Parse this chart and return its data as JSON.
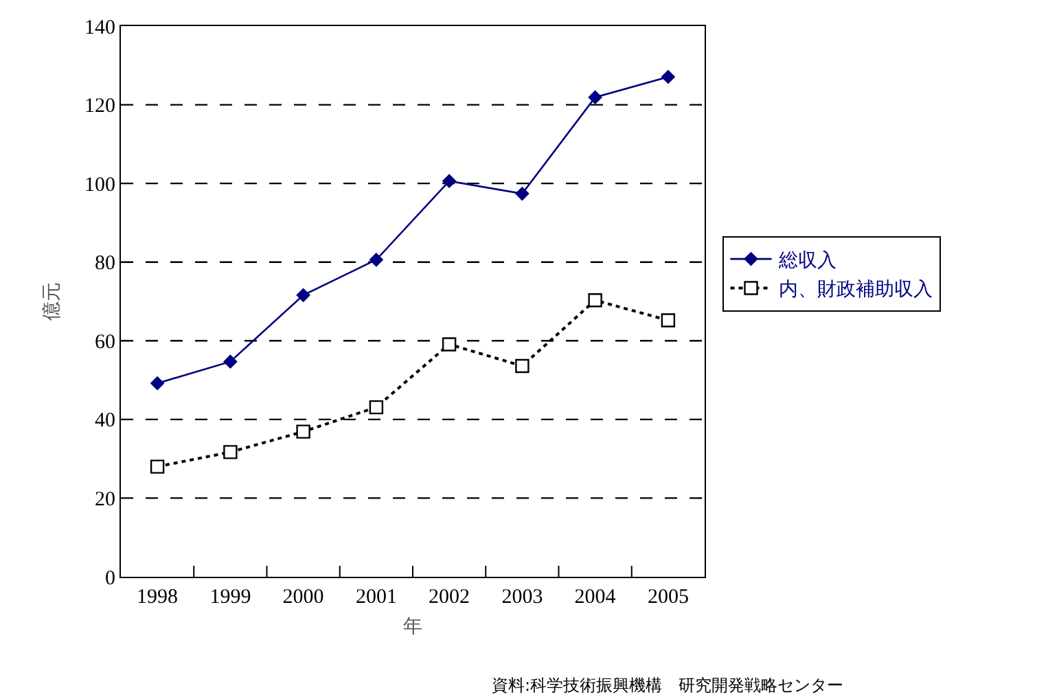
{
  "chart_data": {
    "type": "line",
    "xlabel": "年",
    "ylabel": "億元",
    "categories": [
      "1998",
      "1999",
      "2000",
      "2001",
      "2002",
      "2003",
      "2004",
      "2005"
    ],
    "series": [
      {
        "name": "総収入",
        "color": "#000080",
        "marker": "diamond",
        "line_style": "solid",
        "values": [
          49.2,
          54.7,
          71.6,
          80.6,
          100.6,
          97.4,
          121.9,
          127.1
        ]
      },
      {
        "name": "内、財政補助収入",
        "color": "#000000",
        "marker": "square",
        "line_style": "dotted",
        "values": [
          28.0,
          31.7,
          36.9,
          43.1,
          59.1,
          53.6,
          70.3,
          65.2
        ]
      }
    ],
    "ylim": [
      0,
      140
    ],
    "yticks": [
      0,
      20,
      40,
      60,
      80,
      100,
      120,
      140
    ],
    "grid": "y",
    "legend": "right",
    "annotations": [
      "資料:科学技術振興機構　研究開発戦略センター"
    ]
  }
}
